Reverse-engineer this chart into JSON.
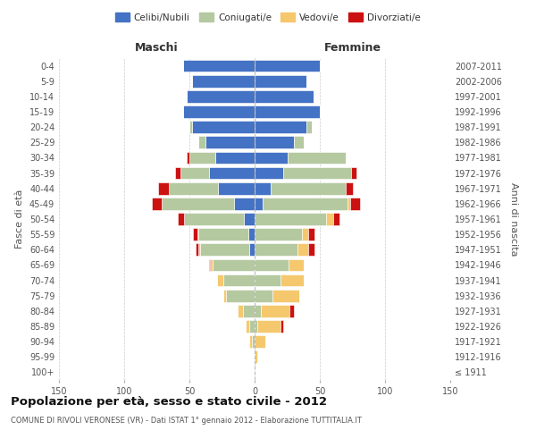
{
  "age_groups": [
    "100+",
    "95-99",
    "90-94",
    "85-89",
    "80-84",
    "75-79",
    "70-74",
    "65-69",
    "60-64",
    "55-59",
    "50-54",
    "45-49",
    "40-44",
    "35-39",
    "30-34",
    "25-29",
    "20-24",
    "15-19",
    "10-14",
    "5-9",
    "0-4"
  ],
  "birth_years": [
    "≤ 1911",
    "1912-1916",
    "1917-1921",
    "1922-1926",
    "1927-1931",
    "1932-1936",
    "1937-1941",
    "1942-1946",
    "1947-1951",
    "1952-1956",
    "1957-1961",
    "1962-1966",
    "1967-1971",
    "1972-1976",
    "1977-1981",
    "1982-1986",
    "1987-1991",
    "1992-1996",
    "1997-2001",
    "2002-2006",
    "2007-2011"
  ],
  "maschi": {
    "celibi": [
      0,
      0,
      0,
      0,
      0,
      0,
      0,
      0,
      4,
      5,
      8,
      16,
      28,
      35,
      30,
      38,
      48,
      55,
      52,
      48,
      55
    ],
    "coniugati": [
      0,
      0,
      2,
      4,
      9,
      22,
      24,
      32,
      38,
      38,
      46,
      55,
      38,
      22,
      20,
      5,
      2,
      0,
      0,
      0,
      0
    ],
    "vedovi": [
      0,
      0,
      2,
      3,
      4,
      2,
      5,
      2,
      1,
      1,
      0,
      0,
      0,
      0,
      0,
      0,
      0,
      0,
      0,
      0,
      0
    ],
    "divorziati": [
      0,
      0,
      0,
      0,
      0,
      0,
      0,
      1,
      2,
      3,
      5,
      8,
      8,
      4,
      2,
      0,
      0,
      0,
      0,
      0,
      0
    ]
  },
  "femmine": {
    "nubili": [
      0,
      0,
      0,
      0,
      0,
      0,
      0,
      0,
      0,
      0,
      0,
      6,
      12,
      22,
      25,
      30,
      40,
      50,
      45,
      40,
      50
    ],
    "coniugate": [
      0,
      0,
      0,
      2,
      5,
      14,
      20,
      26,
      33,
      36,
      55,
      65,
      58,
      52,
      45,
      8,
      4,
      0,
      0,
      0,
      0
    ],
    "vedove": [
      0,
      2,
      8,
      18,
      22,
      20,
      18,
      12,
      8,
      5,
      5,
      2,
      0,
      0,
      0,
      0,
      0,
      0,
      0,
      0,
      0
    ],
    "divorziate": [
      0,
      0,
      0,
      2,
      3,
      0,
      0,
      0,
      5,
      5,
      5,
      8,
      5,
      4,
      0,
      0,
      0,
      0,
      0,
      0,
      0
    ]
  },
  "colors": {
    "celibi_nubili": "#4472C4",
    "coniugati": "#B5C9A0",
    "vedovi": "#F5C86E",
    "divorziati": "#CC1111"
  },
  "xlim": 150,
  "title": "Popolazione per età, sesso e stato civile - 2012",
  "subtitle": "COMUNE DI RIVOLI VERONESE (VR) - Dati ISTAT 1° gennaio 2012 - Elaborazione TUTTITALIA.IT",
  "ylabel_left": "Fasce di età",
  "ylabel_right": "Anni di nascita",
  "header_maschi": "Maschi",
  "header_femmine": "Femmine",
  "legend_labels": [
    "Celibi/Nubili",
    "Coniugati/e",
    "Vedovi/e",
    "Divorziati/e"
  ],
  "background_color": "#ffffff",
  "grid_color": "#cccccc"
}
